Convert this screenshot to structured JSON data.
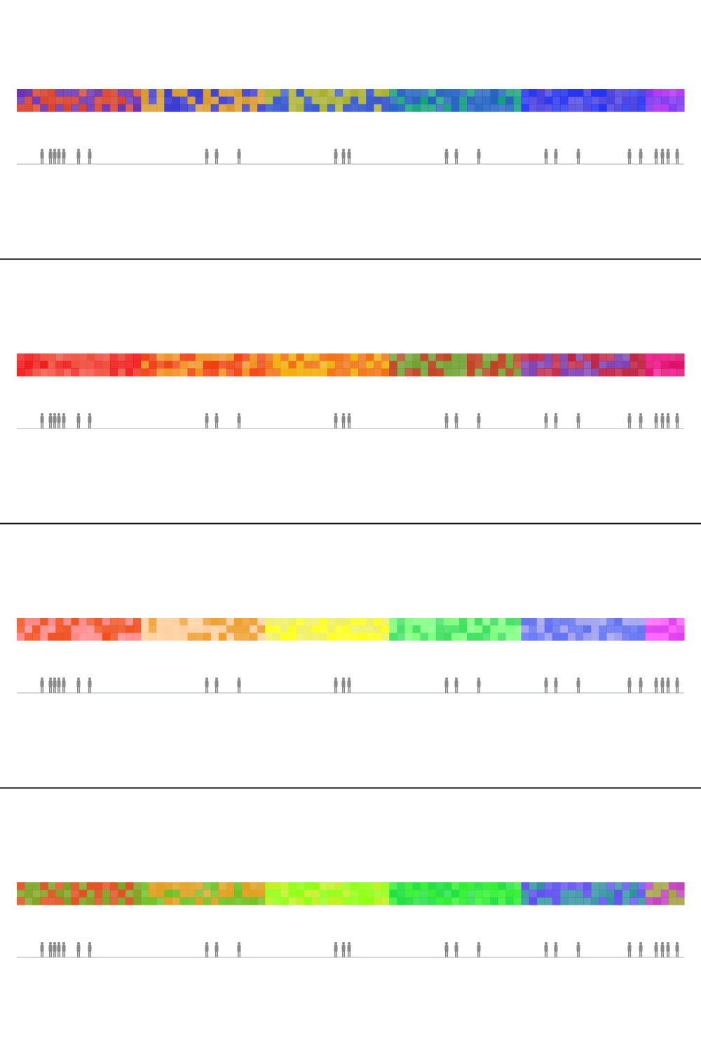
{
  "panels": [
    {
      "segments": [
        [
          "#6a2fb0",
          "#d8402a"
        ],
        [
          "#3a3ad0",
          "#d89a30"
        ],
        [
          "#a8b030",
          "#3a5ad0"
        ],
        [
          "#10a07a",
          "#2060c0"
        ],
        [
          "#2030f0",
          "#4a40e0"
        ],
        [
          "#7a30f0",
          "#b030f0"
        ]
      ]
    },
    {
      "segments": [
        [
          "#f01818",
          "#f05040"
        ],
        [
          "#f04010",
          "#f09020"
        ],
        [
          "#f07010",
          "#f0b010"
        ],
        [
          "#70a030",
          "#c04020"
        ],
        [
          "#8040b0",
          "#c02040"
        ],
        [
          "#e01070",
          "#f02090"
        ]
      ]
    },
    {
      "segments": [
        [
          "#ff8888",
          "#f05020"
        ],
        [
          "#ffd0a0",
          "#f0a030"
        ],
        [
          "#ffff20",
          "#f0f060"
        ],
        [
          "#80ff80",
          "#40e060"
        ],
        [
          "#6070f0",
          "#a0a0f0"
        ],
        [
          "#ff60ff",
          "#e040f0"
        ]
      ]
    },
    {
      "segments": [
        [
          "#80a020",
          "#e05020"
        ],
        [
          "#70c020",
          "#e0a020"
        ],
        [
          "#90ff10",
          "#c0f020"
        ],
        [
          "#30f030",
          "#20e040"
        ],
        [
          "#3090a0",
          "#6050f0"
        ],
        [
          "#a0a040",
          "#c040c0"
        ]
      ]
    }
  ]
}
